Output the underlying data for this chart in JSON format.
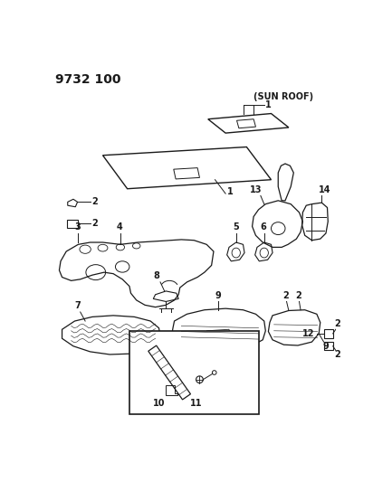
{
  "title": "9732 100",
  "bg_color": "#ffffff",
  "line_color": "#1a1a1a",
  "fig_width": 4.12,
  "fig_height": 5.33,
  "dpi": 100,
  "title_fontsize": 10,
  "label_fontsize": 7,
  "sun_roof_label": "(SUN ROOF)"
}
